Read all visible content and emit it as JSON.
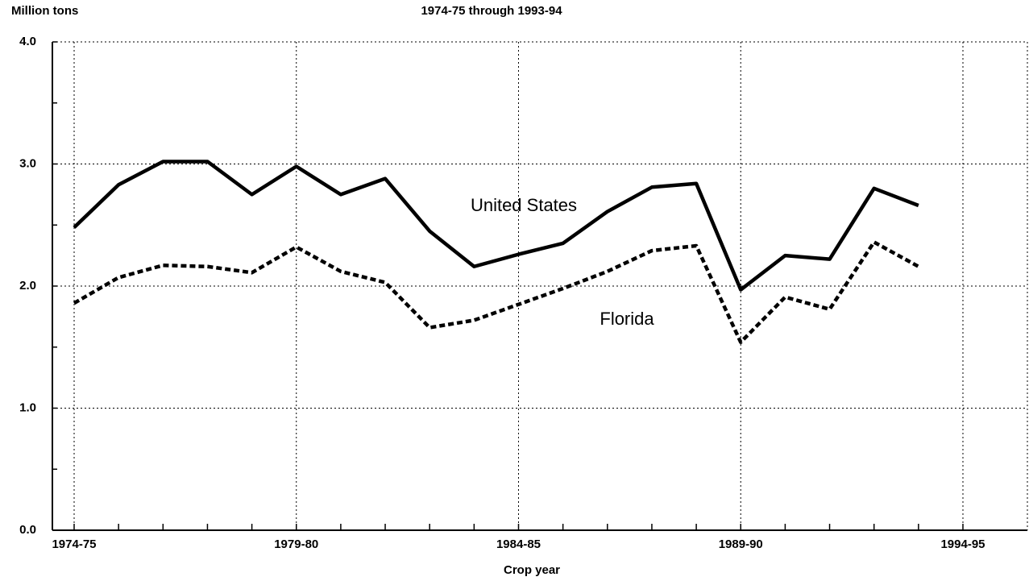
{
  "chart_data": {
    "type": "line",
    "title": "1974-75 through 1993-94",
    "y_label": "Million tons",
    "x_label": "Crop year",
    "categories": [
      "1974-75",
      null,
      null,
      null,
      null,
      "1979-80",
      null,
      null,
      null,
      null,
      "1984-85",
      null,
      null,
      null,
      null,
      "1989-90",
      null,
      null,
      null,
      null,
      "1994-95"
    ],
    "series": [
      {
        "name": "United States",
        "color": "#000000",
        "style": "solid",
        "values": [
          2.48,
          2.83,
          3.02,
          3.02,
          2.75,
          2.98,
          2.75,
          2.88,
          2.45,
          2.16,
          2.26,
          2.35,
          2.61,
          2.81,
          2.84,
          1.97,
          2.25,
          2.22,
          2.8,
          2.66,
          null
        ]
      },
      {
        "name": "Florida",
        "color": "#000000",
        "style": "dashed",
        "values": [
          1.86,
          2.07,
          2.17,
          2.16,
          2.11,
          2.32,
          2.12,
          2.03,
          1.66,
          1.72,
          1.85,
          1.98,
          2.12,
          2.29,
          2.33,
          1.54,
          1.91,
          1.81,
          2.36,
          2.16,
          null
        ]
      }
    ],
    "ylim": [
      0,
      4
    ],
    "yticks": [
      {
        "value": 0,
        "label": "0.0"
      },
      {
        "value": 1,
        "label": "1.0"
      },
      {
        "value": 2,
        "label": "2.0"
      },
      {
        "value": 3,
        "label": "3.0"
      },
      {
        "value": 4,
        "label": "4.0"
      }
    ],
    "grid": true
  }
}
